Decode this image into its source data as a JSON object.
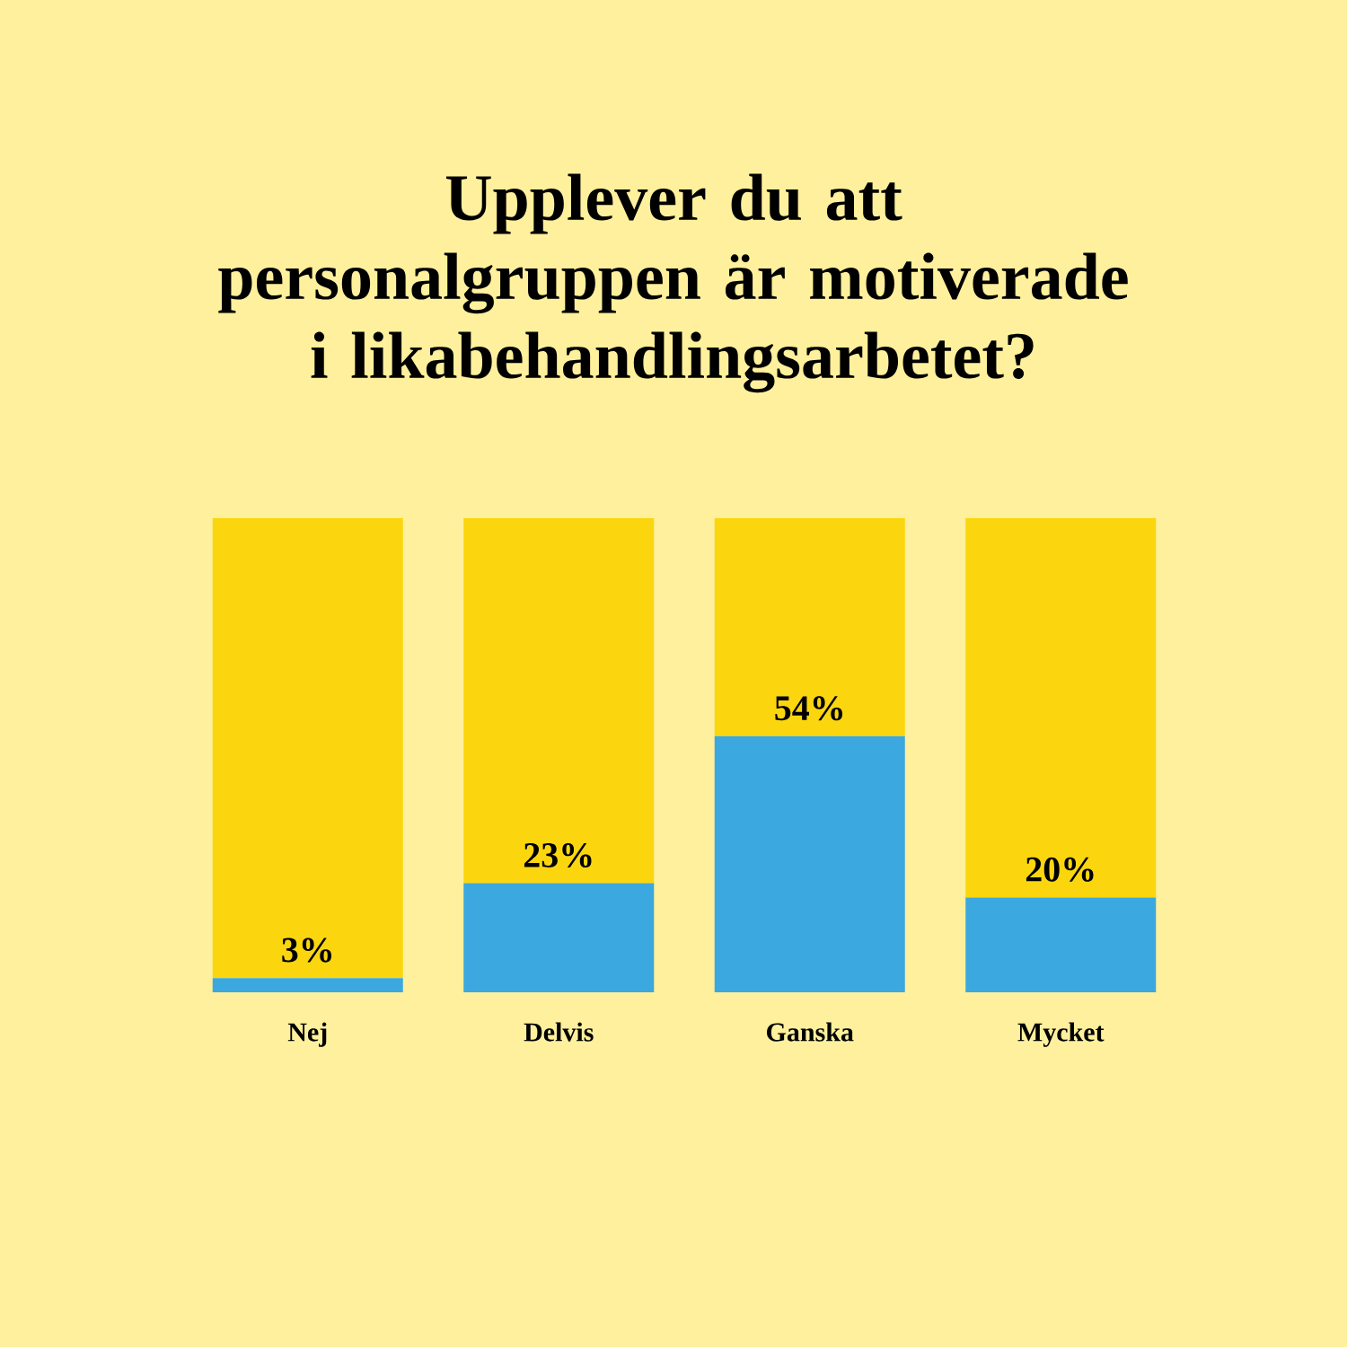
{
  "chart_data": {
    "type": "bar",
    "title": "Upplever du att personalgruppen är motiverade i likabehandlingsarbetet?",
    "categories": [
      "Nej",
      "Delvis",
      "Ganska",
      "Mycket"
    ],
    "stacked": true,
    "series": [
      {
        "color": "#3ba8df",
        "values": [
          3,
          23,
          54,
          20
        ],
        "value_labels": [
          "3%",
          "23%",
          "54%",
          "20%"
        ]
      },
      {
        "color": "#fbd60f",
        "values": [
          97,
          77,
          46,
          80
        ]
      }
    ]
  }
}
